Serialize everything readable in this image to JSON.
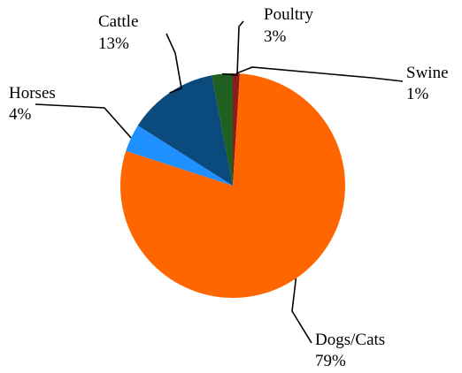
{
  "chart_data": {
    "type": "pie",
    "title": "",
    "slices": [
      {
        "label": "Dogs/Cats",
        "value": 79,
        "pct_text": "79%",
        "color": "#FF6600"
      },
      {
        "label": "Horses",
        "value": 4,
        "pct_text": "4%",
        "color": "#1E90FF"
      },
      {
        "label": "Cattle",
        "value": 13,
        "pct_text": "13%",
        "color": "#0B4A7D"
      },
      {
        "label": "Poultry",
        "value": 3,
        "pct_text": "3%",
        "color": "#1F5F1F"
      },
      {
        "label": "Swine",
        "value": 1,
        "pct_text": "1%",
        "color": "#8B1A1A"
      }
    ],
    "legend": "none"
  }
}
